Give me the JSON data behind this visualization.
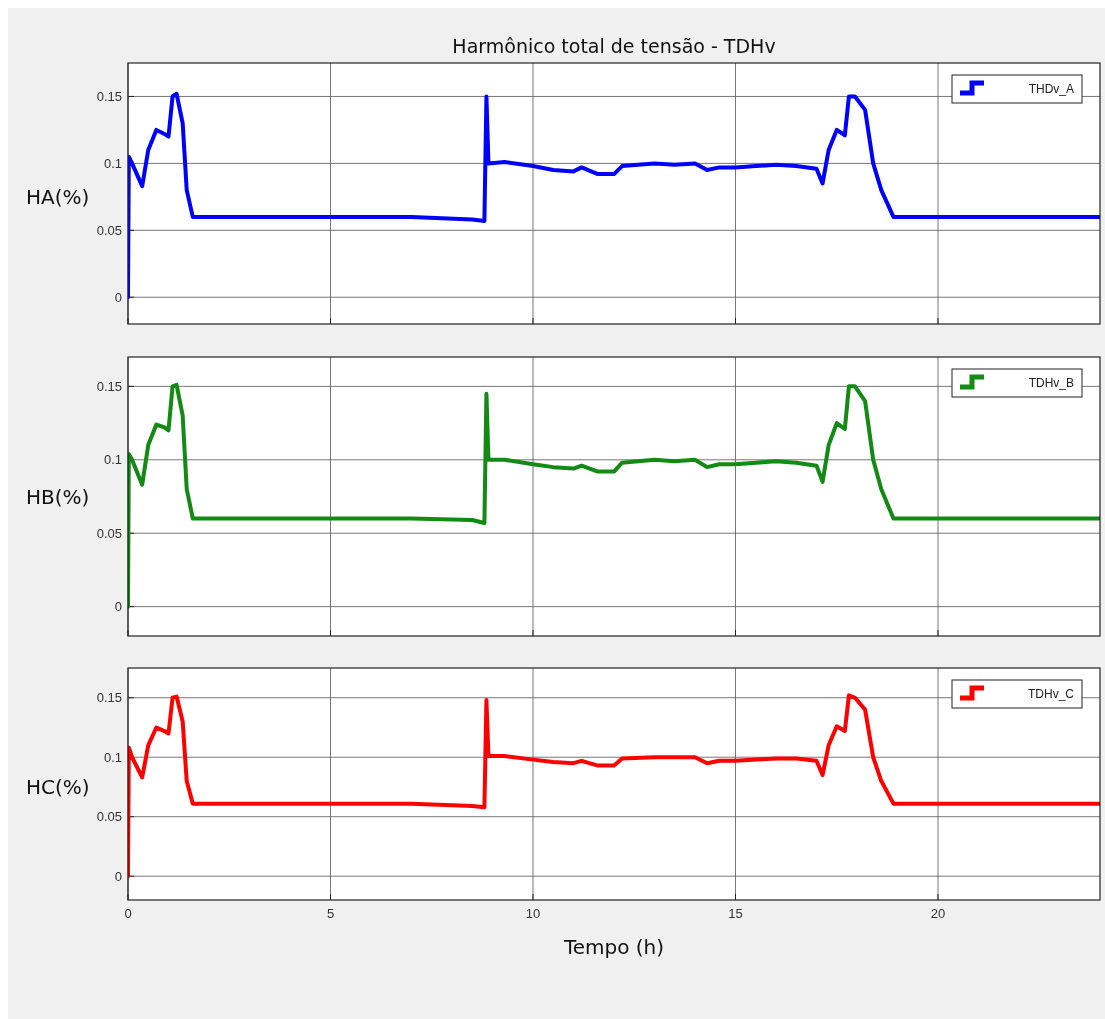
{
  "chart_data": [
    {
      "type": "line",
      "title": "Harmônico total de tensão - TDHv",
      "ylabel": "HA(%)",
      "x": [
        0,
        0.02,
        0.1,
        0.35,
        0.5,
        0.7,
        0.9,
        1.0,
        1.1,
        1.2,
        1.35,
        1.45,
        1.6,
        3,
        5,
        7,
        8.5,
        8.8,
        8.85,
        8.9,
        9.3,
        10,
        10.5,
        11,
        11.2,
        11.6,
        12,
        12.2,
        13,
        13.5,
        14,
        14.3,
        14.6,
        15,
        15.5,
        16,
        16.5,
        17,
        17.15,
        17.3,
        17.5,
        17.7,
        17.8,
        17.95,
        18.2,
        18.4,
        18.6,
        18.9,
        20,
        22,
        24
      ],
      "series": [
        {
          "name": "THDv_A",
          "color": "#0000ff",
          "values": [
            0,
            0.105,
            0.1,
            0.083,
            0.11,
            0.125,
            0.122,
            0.12,
            0.15,
            0.152,
            0.13,
            0.08,
            0.06,
            0.06,
            0.06,
            0.06,
            0.058,
            0.057,
            0.15,
            0.1,
            0.101,
            0.098,
            0.095,
            0.094,
            0.097,
            0.092,
            0.092,
            0.098,
            0.1,
            0.099,
            0.1,
            0.095,
            0.097,
            0.097,
            0.098,
            0.099,
            0.098,
            0.096,
            0.085,
            0.11,
            0.125,
            0.121,
            0.15,
            0.15,
            0.14,
            0.1,
            0.08,
            0.06,
            0.06,
            0.06,
            0.06
          ]
        }
      ],
      "xlim": [
        0,
        24
      ],
      "xticks": [
        0,
        5,
        10,
        15,
        20
      ],
      "ylim": [
        -0.02,
        0.175
      ],
      "yticks": [
        0,
        0.05,
        0.1,
        0.15
      ],
      "grid": true,
      "legend": "top right",
      "tick_labels": "y"
    },
    {
      "type": "line",
      "ylabel": "HB(%)",
      "x": [
        0,
        0.02,
        0.1,
        0.35,
        0.5,
        0.7,
        0.9,
        1.0,
        1.1,
        1.2,
        1.35,
        1.45,
        1.6,
        3,
        5,
        7,
        8.5,
        8.8,
        8.85,
        8.9,
        9.3,
        10,
        10.5,
        11,
        11.2,
        11.6,
        12,
        12.2,
        13,
        13.5,
        14,
        14.3,
        14.6,
        15,
        15.5,
        16,
        16.5,
        17,
        17.15,
        17.3,
        17.5,
        17.7,
        17.8,
        17.95,
        18.2,
        18.4,
        18.6,
        18.9,
        20,
        22,
        24
      ],
      "series": [
        {
          "name": "TDHv_B",
          "color": "#138a13",
          "values": [
            0,
            0.104,
            0.1,
            0.083,
            0.11,
            0.124,
            0.122,
            0.12,
            0.15,
            0.151,
            0.13,
            0.08,
            0.06,
            0.06,
            0.06,
            0.06,
            0.059,
            0.057,
            0.145,
            0.1,
            0.1,
            0.097,
            0.095,
            0.094,
            0.096,
            0.092,
            0.092,
            0.098,
            0.1,
            0.099,
            0.1,
            0.095,
            0.097,
            0.097,
            0.098,
            0.099,
            0.098,
            0.096,
            0.085,
            0.11,
            0.125,
            0.121,
            0.15,
            0.15,
            0.14,
            0.1,
            0.08,
            0.06,
            0.06,
            0.06,
            0.06
          ]
        }
      ],
      "xlim": [
        0,
        24
      ],
      "xticks": [
        0,
        5,
        10,
        15,
        20
      ],
      "ylim": [
        -0.02,
        0.17
      ],
      "yticks": [
        0,
        0.05,
        0.1,
        0.15
      ],
      "grid": true,
      "legend": "top right",
      "tick_labels": "y"
    },
    {
      "type": "line",
      "ylabel": "HC(%)",
      "xlabel": "Tempo (h)",
      "x": [
        0,
        0.02,
        0.1,
        0.35,
        0.5,
        0.7,
        0.9,
        1.0,
        1.1,
        1.2,
        1.35,
        1.45,
        1.6,
        3,
        5,
        7,
        8.5,
        8.8,
        8.85,
        8.9,
        9.3,
        10,
        10.5,
        11,
        11.2,
        11.6,
        12,
        12.2,
        13,
        13.5,
        14,
        14.3,
        14.6,
        15,
        15.5,
        16,
        16.5,
        17,
        17.15,
        17.3,
        17.5,
        17.7,
        17.8,
        17.95,
        18.2,
        18.4,
        18.6,
        18.9,
        20,
        22,
        24
      ],
      "series": [
        {
          "name": "TDHv_C",
          "color": "#ff0000",
          "values": [
            0,
            0.108,
            0.1,
            0.083,
            0.11,
            0.125,
            0.122,
            0.12,
            0.15,
            0.151,
            0.13,
            0.08,
            0.061,
            0.061,
            0.061,
            0.061,
            0.059,
            0.058,
            0.148,
            0.101,
            0.101,
            0.098,
            0.096,
            0.095,
            0.097,
            0.093,
            0.093,
            0.099,
            0.1,
            0.1,
            0.1,
            0.095,
            0.097,
            0.097,
            0.098,
            0.099,
            0.099,
            0.097,
            0.085,
            0.11,
            0.126,
            0.122,
            0.152,
            0.15,
            0.14,
            0.1,
            0.08,
            0.061,
            0.061,
            0.061,
            0.061
          ]
        }
      ],
      "xlim": [
        0,
        24
      ],
      "xticks": [
        0,
        5,
        10,
        15,
        20
      ],
      "ylim": [
        -0.02,
        0.175
      ],
      "yticks": [
        0,
        0.05,
        0.1,
        0.15
      ],
      "grid": true,
      "legend": "top right"
    }
  ]
}
